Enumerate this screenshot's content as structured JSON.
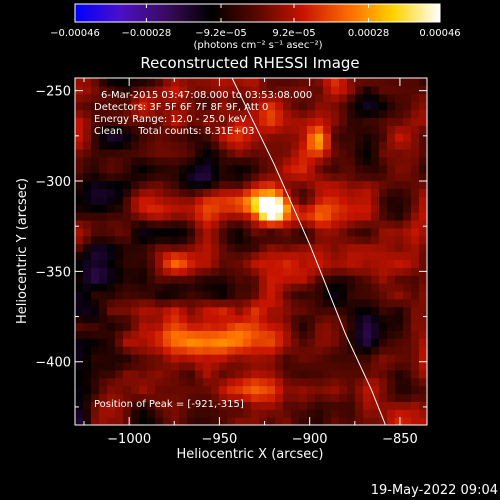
{
  "chart_data": {
    "type": "heatmap",
    "title": "Reconstructed RHESSI Image",
    "xlabel": "Heliocentric X (arcsec)",
    "ylabel": "Heliocentric Y (arcsec)",
    "xlim": [
      -1030,
      -835
    ],
    "ylim": [
      -435,
      -243
    ],
    "x_ticks": [
      -1000,
      -950,
      -900,
      -850
    ],
    "x_tick_labels": [
      "−1000",
      "−950",
      "−900",
      "−850"
    ],
    "y_ticks": [
      -250,
      -300,
      -350,
      -400
    ],
    "y_tick_labels": [
      "−250",
      "−300",
      "−350",
      "−400"
    ],
    "colorbar": {
      "min": -0.00046,
      "max": 0.00046,
      "ticks": [
        -0.00046,
        -0.00028,
        -9.2e-05,
        9.2e-05,
        0.00028,
        0.00046
      ],
      "tick_labels": [
        "−0.00046",
        "−0.00028",
        "−9.2e−05",
        "9.2e−05",
        "0.00028",
        "0.00046"
      ],
      "unit_label": "(photons cm⁻² s⁻¹ asec⁻²)",
      "colors": [
        "#0000ff",
        "#4b10c8",
        "#3a0a5e",
        "#000000",
        "#5a0800",
        "#c81400",
        "#ff6a00",
        "#ffd400",
        "#ffffff"
      ]
    },
    "annotations": {
      "time_range": "6-Mar-2015 03:47:08.000 to 03:53:08.000",
      "detectors": "Detectors: 3F 5F 6F 7F 8F 9F, Att 0",
      "energy": "Energy Range: 12.0 - 25.0 keV",
      "clean": "Clean     Total counts: 8.31E+03",
      "peak": "Position of Peak = [-921,-315]"
    },
    "peak": {
      "x": -921,
      "y": -315
    },
    "limb_curve": [
      [
        -943,
        -243
      ],
      [
        -920,
        -290
      ],
      [
        -900,
        -335
      ],
      [
        -880,
        -385
      ],
      [
        -866,
        -415
      ],
      [
        -858,
        -435
      ]
    ],
    "sources": [
      {
        "x": -921,
        "y": -315,
        "sx": 5,
        "sy": 5,
        "amp": 1.0
      },
      {
        "x": -935,
        "y": -312,
        "sx": 18,
        "sy": 8,
        "amp": 0.45
      },
      {
        "x": -905,
        "y": -318,
        "sx": 20,
        "sy": 7,
        "amp": 0.4
      },
      {
        "x": -980,
        "y": -318,
        "sx": 14,
        "sy": 5,
        "amp": 0.28
      },
      {
        "x": -895,
        "y": -277,
        "sx": 5,
        "sy": 5,
        "amp": 0.55
      },
      {
        "x": -935,
        "y": -268,
        "sx": 22,
        "sy": 10,
        "amp": 0.3
      },
      {
        "x": -960,
        "y": -345,
        "sx": 28,
        "sy": 5,
        "amp": 0.3
      },
      {
        "x": -985,
        "y": -388,
        "sx": 20,
        "sy": 9,
        "amp": 0.32
      },
      {
        "x": -940,
        "y": -388,
        "sx": 25,
        "sy": 6,
        "amp": 0.3
      },
      {
        "x": -960,
        "y": -370,
        "sx": 30,
        "sy": 4,
        "amp": 0.22
      },
      {
        "x": -860,
        "y": -410,
        "sx": 8,
        "sy": 8,
        "amp": 0.25
      },
      {
        "x": -935,
        "y": -415,
        "sx": 20,
        "sy": 5,
        "amp": 0.22
      },
      {
        "x": -1015,
        "y": -355,
        "sx": 10,
        "sy": 20,
        "amp": -0.3
      },
      {
        "x": -1010,
        "y": -290,
        "sx": 10,
        "sy": 25,
        "amp": -0.25
      },
      {
        "x": -870,
        "y": -380,
        "sx": 12,
        "sy": 15,
        "amp": -0.25
      },
      {
        "x": -960,
        "y": -300,
        "sx": 10,
        "sy": 6,
        "amp": -0.2
      }
    ]
  },
  "footer": {
    "timestamp": "19-May-2022 09:04"
  }
}
